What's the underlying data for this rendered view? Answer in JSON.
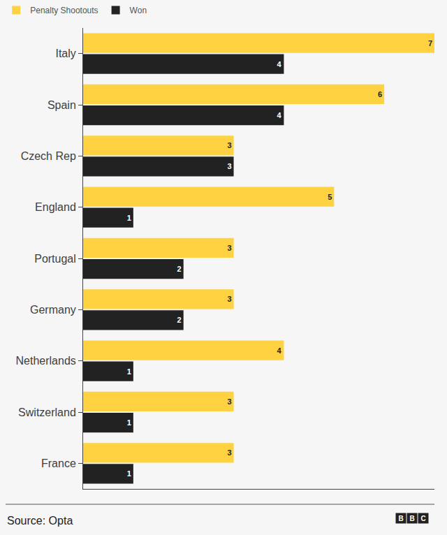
{
  "chart_data": {
    "type": "bar",
    "orientation": "horizontal",
    "categories": [
      "Italy",
      "Spain",
      "Czech Rep",
      "England",
      "Portugal",
      "Germany",
      "Netherlands",
      "Switzerland",
      "France"
    ],
    "series": [
      {
        "name": "Penalty Shootouts",
        "color": "#fed241",
        "values": [
          7,
          6,
          3,
          5,
          3,
          3,
          4,
          3,
          3
        ]
      },
      {
        "name": "Won",
        "color": "#222222",
        "values": [
          4,
          4,
          3,
          1,
          2,
          2,
          1,
          1,
          1
        ]
      }
    ],
    "xlim": [
      0,
      7
    ],
    "xticks": [],
    "tick_labels": "y",
    "data_labels": true,
    "legend": "top-left",
    "grid": false,
    "source": "Source: Opta",
    "logo": "BBC"
  }
}
